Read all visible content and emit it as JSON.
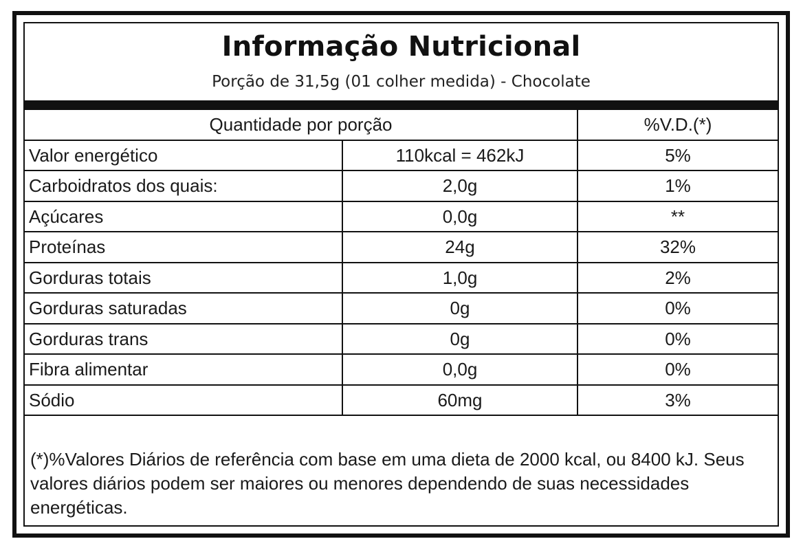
{
  "label": {
    "title": "Informação Nutricional",
    "subtitle": "Porção de 31,5g (01 colher medida) -  Chocolate",
    "header": {
      "quantity_label": "Quantidade por porção",
      "dv_label": "%V.D.(*)"
    },
    "rows": [
      {
        "name": "Valor energético",
        "amount": "110kcal = 462kJ",
        "dv": "5%"
      },
      {
        "name": "Carboidratos dos quais:",
        "amount": "2,0g",
        "dv": "1%"
      },
      {
        "name": "Açúcares",
        "amount": "0,0g",
        "dv": "**"
      },
      {
        "name": "Proteínas",
        "amount": "24g",
        "dv": "32%"
      },
      {
        "name": "Gorduras totais",
        "amount": "1,0g",
        "dv": "2%"
      },
      {
        "name": "Gorduras saturadas",
        "amount": "0g",
        "dv": "0%"
      },
      {
        "name": "Gorduras trans",
        "amount": "0g",
        "dv": "0%"
      },
      {
        "name": "Fibra alimentar",
        "amount": "0,0g",
        "dv": "0%"
      },
      {
        "name": "Sódio",
        "amount": "60mg",
        "dv": "3%"
      }
    ],
    "footnote": "(*)%Valores Diários de referência com base em uma dieta de 2000 kcal, ou 8400 kJ. Seus valores diários podem ser maiores ou menores dependendo de suas necessidades energéticas."
  }
}
